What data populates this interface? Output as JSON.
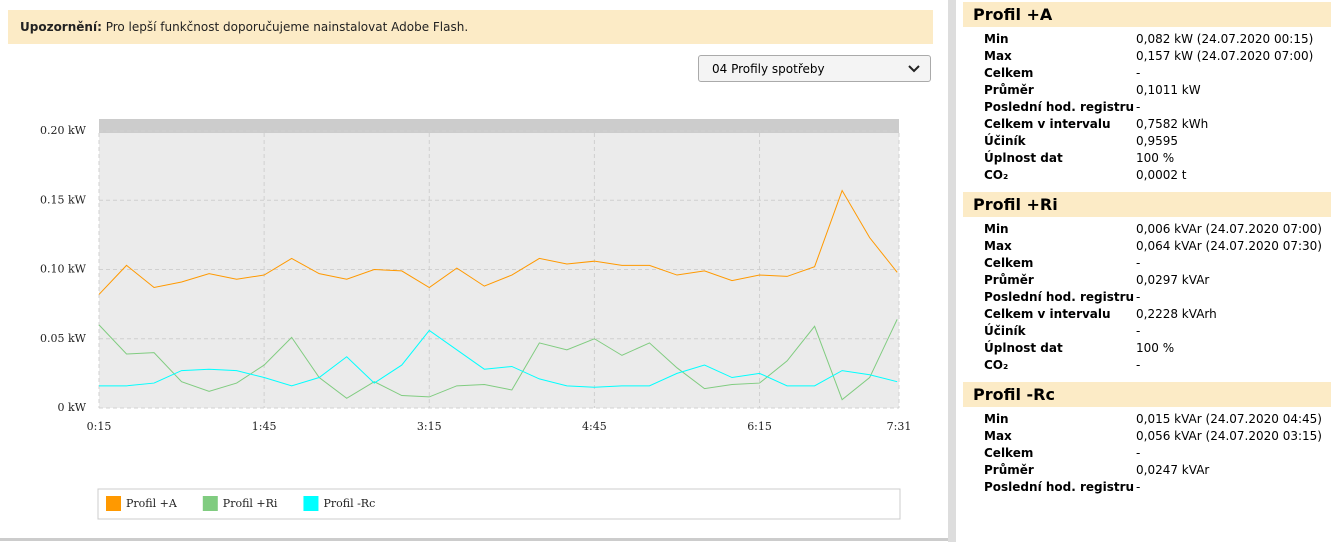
{
  "notice": {
    "label": "Upozornění:",
    "text": "Pro lepší funkčnost doporučujeme nainstalovat Adobe Flash."
  },
  "select": {
    "value": "04 Profily spotřeby"
  },
  "chart_data": {
    "type": "line",
    "x": [
      15,
      30,
      45,
      60,
      75,
      90,
      105,
      120,
      135,
      150,
      165,
      180,
      195,
      210,
      225,
      240,
      255,
      270,
      285,
      300,
      315,
      330,
      345,
      360,
      375,
      390,
      405,
      420,
      435,
      450
    ],
    "xlim": [
      15,
      451
    ],
    "xticks": [
      {
        "value": 15,
        "label": "0:15"
      },
      {
        "value": 105,
        "label": "1:45"
      },
      {
        "value": 195,
        "label": "3:15"
      },
      {
        "value": 285,
        "label": "4:45"
      },
      {
        "value": 375,
        "label": "6:15"
      },
      {
        "value": 451,
        "label": "7:31"
      }
    ],
    "ylim": [
      0,
      0.2
    ],
    "yticks": [
      {
        "value": 0,
        "label": "0 kW"
      },
      {
        "value": 0.05,
        "label": "0.05 kW"
      },
      {
        "value": 0.1,
        "label": "0.10 kW"
      },
      {
        "value": 0.15,
        "label": "0.15 kW"
      },
      {
        "value": 0.2,
        "label": "0.20 kW"
      }
    ],
    "grid": true,
    "series": [
      {
        "name": "Profil +A",
        "color": "#ff9900",
        "values": [
          0.082,
          0.103,
          0.087,
          0.091,
          0.097,
          0.093,
          0.096,
          0.108,
          0.097,
          0.093,
          0.1,
          0.099,
          0.087,
          0.101,
          0.088,
          0.096,
          0.108,
          0.104,
          0.106,
          0.103,
          0.103,
          0.096,
          0.099,
          0.092,
          0.096,
          0.095,
          0.102,
          0.157,
          0.123,
          0.098
        ]
      },
      {
        "name": "Profil +Ri",
        "color": "#80cc80",
        "values": [
          0.06,
          0.039,
          0.04,
          0.019,
          0.012,
          0.018,
          0.031,
          0.051,
          0.022,
          0.007,
          0.019,
          0.009,
          0.008,
          0.016,
          0.017,
          0.013,
          0.047,
          0.042,
          0.05,
          0.038,
          0.047,
          0.029,
          0.014,
          0.017,
          0.018,
          0.034,
          0.059,
          0.006,
          0.022,
          0.064
        ]
      },
      {
        "name": "Profil -Rc",
        "color": "#00ffff",
        "values": [
          0.016,
          0.016,
          0.018,
          0.027,
          0.028,
          0.027,
          0.022,
          0.016,
          0.022,
          0.037,
          0.018,
          0.031,
          0.056,
          0.042,
          0.028,
          0.03,
          0.021,
          0.016,
          0.015,
          0.016,
          0.016,
          0.025,
          0.031,
          0.022,
          0.025,
          0.016,
          0.016,
          0.027,
          0.024,
          0.019
        ]
      }
    ]
  },
  "panel": {
    "sections": [
      {
        "title": "Profil +A",
        "rows": [
          [
            "Min",
            "0,082 kW (24.07.2020 00:15)"
          ],
          [
            "Max",
            "0,157 kW (24.07.2020 07:00)"
          ],
          [
            "Celkem",
            "-"
          ],
          [
            "Průměr",
            "0,1011 kW"
          ],
          [
            "Poslední hod. registru",
            "-"
          ],
          [
            "Celkem v intervalu",
            "0,7582 kWh"
          ],
          [
            "Účiník",
            "0,9595"
          ],
          [
            "Úplnost dat",
            "100 %"
          ],
          [
            "CO₂",
            "0,0002 t"
          ]
        ]
      },
      {
        "title": "Profil +Ri",
        "rows": [
          [
            "Min",
            "0,006 kVAr (24.07.2020 07:00)"
          ],
          [
            "Max",
            "0,064 kVAr (24.07.2020 07:30)"
          ],
          [
            "Celkem",
            "-"
          ],
          [
            "Průměr",
            "0,0297 kVAr"
          ],
          [
            "Poslední hod. registru",
            "-"
          ],
          [
            "Celkem v intervalu",
            "0,2228 kVArh"
          ],
          [
            "Účiník",
            "-"
          ],
          [
            "Úplnost dat",
            "100 %"
          ],
          [
            "CO₂",
            "-"
          ]
        ]
      },
      {
        "title": "Profil -Rc",
        "rows": [
          [
            "Min",
            "0,015 kVAr (24.07.2020 04:45)"
          ],
          [
            "Max",
            "0,056 kVAr (24.07.2020 03:15)"
          ],
          [
            "Celkem",
            "-"
          ],
          [
            "Průměr",
            "0,0247 kVAr"
          ],
          [
            "Poslední hod. registru",
            "-"
          ]
        ]
      }
    ]
  }
}
